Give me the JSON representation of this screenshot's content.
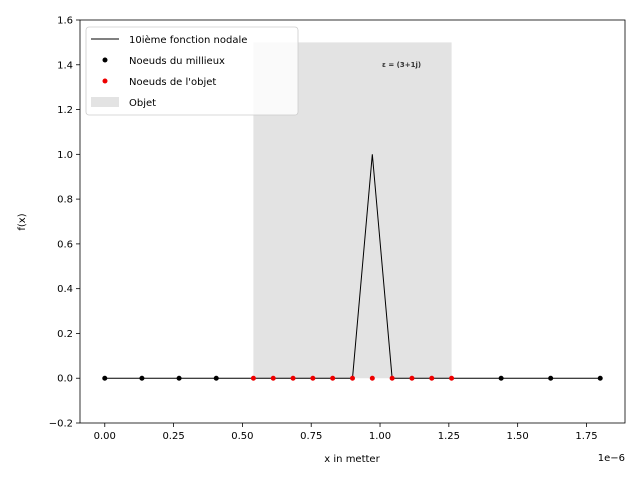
{
  "chart_data": {
    "type": "line",
    "xlabel": "x in metter",
    "ylabel": "f(x)",
    "x_offset_label": "1e−6",
    "xlim": [
      -0.09,
      1.89
    ],
    "ylim": [
      -0.2,
      1.6
    ],
    "x_ticks": [
      0.0,
      0.25,
      0.5,
      0.75,
      1.0,
      1.25,
      1.5,
      1.75
    ],
    "x_tick_labels": [
      "0.00",
      "0.25",
      "0.50",
      "0.75",
      "1.00",
      "1.25",
      "1.50",
      "1.75"
    ],
    "y_ticks": [
      -0.2,
      0.0,
      0.2,
      0.4,
      0.6,
      0.8,
      1.0,
      1.2,
      1.4,
      1.6
    ],
    "y_tick_labels": [
      "−0.2",
      "0.0",
      "0.2",
      "0.4",
      "0.6",
      "0.8",
      "1.0",
      "1.2",
      "1.4",
      "1.6"
    ],
    "object_region": {
      "x": [
        0.54,
        1.26
      ],
      "y": [
        0,
        1.5
      ],
      "color": "#e3e3e3"
    },
    "annotation": {
      "text": "ε = (3+1j)",
      "x": 1.0,
      "y": 1.4
    },
    "legend": {
      "placement": "top-left",
      "entries": [
        {
          "label": "10ième fonction nodale",
          "kind": "line",
          "color": "#000000"
        },
        {
          "label": "Noeuds du millieux",
          "kind": "dot",
          "color": "#000000"
        },
        {
          "label": "Noeuds de l'objet",
          "kind": "dot",
          "color": "#ee0000"
        },
        {
          "label": "Objet",
          "kind": "patch",
          "color": "#e3e3e3"
        }
      ]
    },
    "series": [
      {
        "name": "10ième fonction nodale",
        "type": "line",
        "color": "#000000",
        "x": [
          0.0,
          0.135,
          0.27,
          0.405,
          0.54,
          0.612,
          0.684,
          0.756,
          0.828,
          0.9,
          0.972,
          1.044,
          1.116,
          1.188,
          1.26,
          1.44,
          1.62,
          1.8
        ],
        "y": [
          0,
          0,
          0,
          0,
          0,
          0,
          0,
          0,
          0,
          0,
          1.0,
          0,
          0,
          0,
          0,
          0,
          0,
          0
        ]
      },
      {
        "name": "Noeuds du millieux",
        "type": "scatter",
        "color": "#000000",
        "x": [
          0.0,
          0.135,
          0.27,
          0.405,
          1.44,
          1.62,
          1.8
        ],
        "y": [
          0,
          0,
          0,
          0,
          0,
          0,
          0
        ]
      },
      {
        "name": "Noeuds de l'objet",
        "type": "scatter",
        "color": "#ee0000",
        "x": [
          0.54,
          0.612,
          0.684,
          0.756,
          0.828,
          0.9,
          0.972,
          1.044,
          1.116,
          1.188,
          1.26
        ],
        "y": [
          0,
          0,
          0,
          0,
          0,
          0,
          0,
          0,
          0,
          0,
          0
        ]
      }
    ]
  }
}
